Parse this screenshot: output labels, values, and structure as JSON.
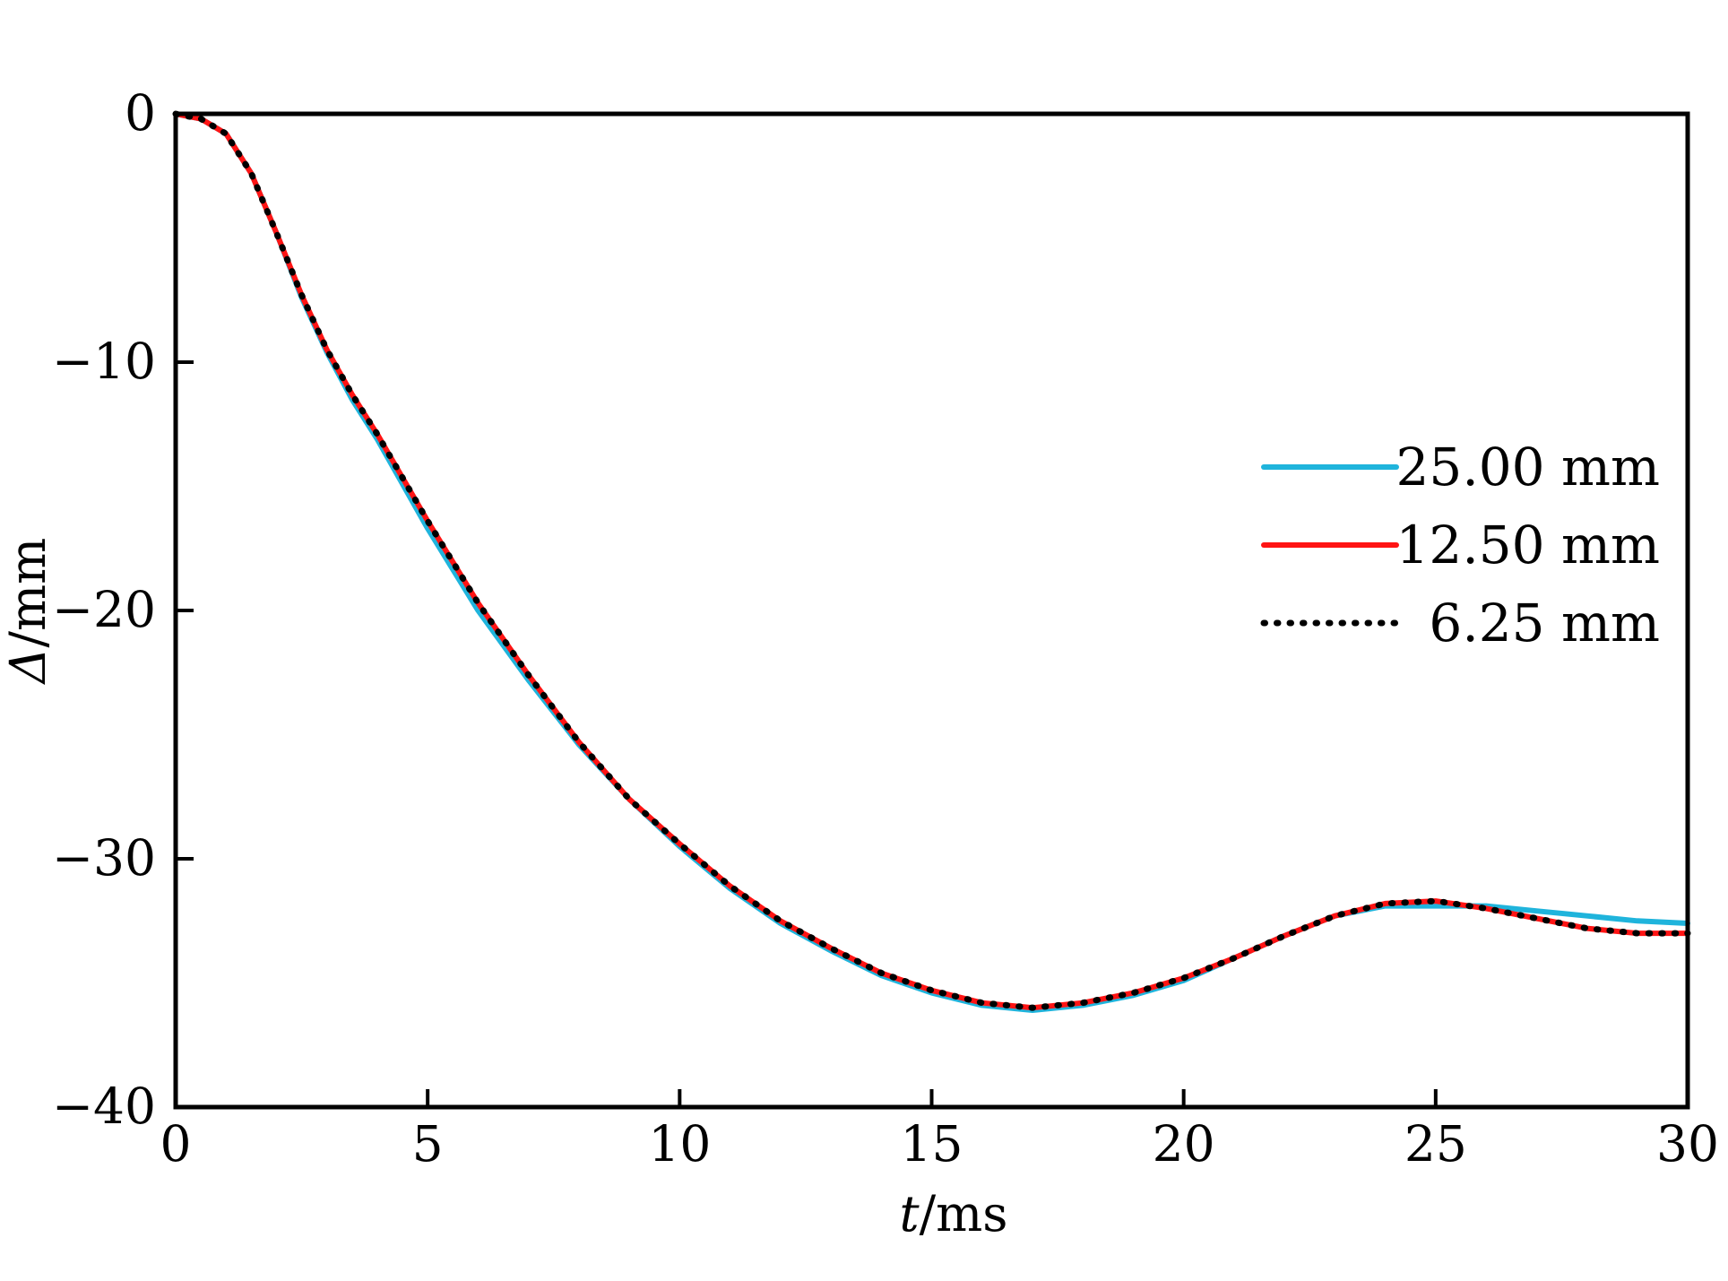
{
  "chart_data": {
    "type": "line",
    "title": "",
    "xlabel": {
      "symbol": "t",
      "unit": "/ms"
    },
    "ylabel": {
      "symbol": "Δ",
      "unit": "/mm"
    },
    "xlim": [
      0,
      30
    ],
    "ylim": [
      -40,
      0
    ],
    "xticks": [
      0,
      5,
      10,
      15,
      20,
      25,
      30
    ],
    "yticks": [
      0,
      -10,
      -20,
      -30,
      -40
    ],
    "xtick_labels": [
      "0",
      "5",
      "10",
      "15",
      "20",
      "25",
      "30"
    ],
    "ytick_labels": [
      "0",
      "−10",
      "−20",
      "−30",
      "−40"
    ],
    "grid": false,
    "legend_position": "right",
    "x": [
      0,
      0.5,
      1,
      1.5,
      2,
      2.5,
      3,
      3.5,
      4,
      5,
      6,
      7,
      8,
      9,
      10,
      11,
      12,
      13,
      14,
      15,
      16,
      17,
      18,
      19,
      20,
      21,
      22,
      23,
      24,
      25,
      26,
      27,
      28,
      29,
      30
    ],
    "series": [
      {
        "name": "25.00 mm",
        "color": "#1fb4dc",
        "style": "solid",
        "values": [
          0,
          -0.2,
          -0.8,
          -2.4,
          -4.8,
          -7.4,
          -9.6,
          -11.5,
          -13.1,
          -16.7,
          -20.0,
          -22.8,
          -25.4,
          -27.6,
          -29.5,
          -31.2,
          -32.6,
          -33.7,
          -34.7,
          -35.4,
          -35.9,
          -36.1,
          -35.9,
          -35.5,
          -34.9,
          -34.0,
          -33.1,
          -32.3,
          -31.9,
          -31.9,
          -31.9,
          -32.1,
          -32.3,
          -32.5,
          -32.6
        ]
      },
      {
        "name": "12.50 mm",
        "color": "#ff1414",
        "style": "solid",
        "values": [
          0,
          -0.2,
          -0.8,
          -2.4,
          -4.8,
          -7.3,
          -9.5,
          -11.3,
          -12.9,
          -16.4,
          -19.7,
          -22.6,
          -25.3,
          -27.6,
          -29.4,
          -31.1,
          -32.5,
          -33.6,
          -34.6,
          -35.3,
          -35.8,
          -36.0,
          -35.8,
          -35.4,
          -34.8,
          -34.0,
          -33.1,
          -32.3,
          -31.8,
          -31.7,
          -32.0,
          -32.4,
          -32.8,
          -33.0,
          -33.0
        ]
      },
      {
        "name": "6.25 mm",
        "color": "#000000",
        "style": "dotted",
        "values": [
          0,
          -0.2,
          -0.8,
          -2.4,
          -4.8,
          -7.3,
          -9.5,
          -11.3,
          -12.9,
          -16.4,
          -19.7,
          -22.6,
          -25.3,
          -27.6,
          -29.4,
          -31.1,
          -32.5,
          -33.6,
          -34.6,
          -35.3,
          -35.8,
          -36.0,
          -35.8,
          -35.4,
          -34.8,
          -34.0,
          -33.1,
          -32.3,
          -31.8,
          -31.7,
          -32.0,
          -32.4,
          -32.8,
          -33.0,
          -33.0
        ]
      }
    ]
  }
}
